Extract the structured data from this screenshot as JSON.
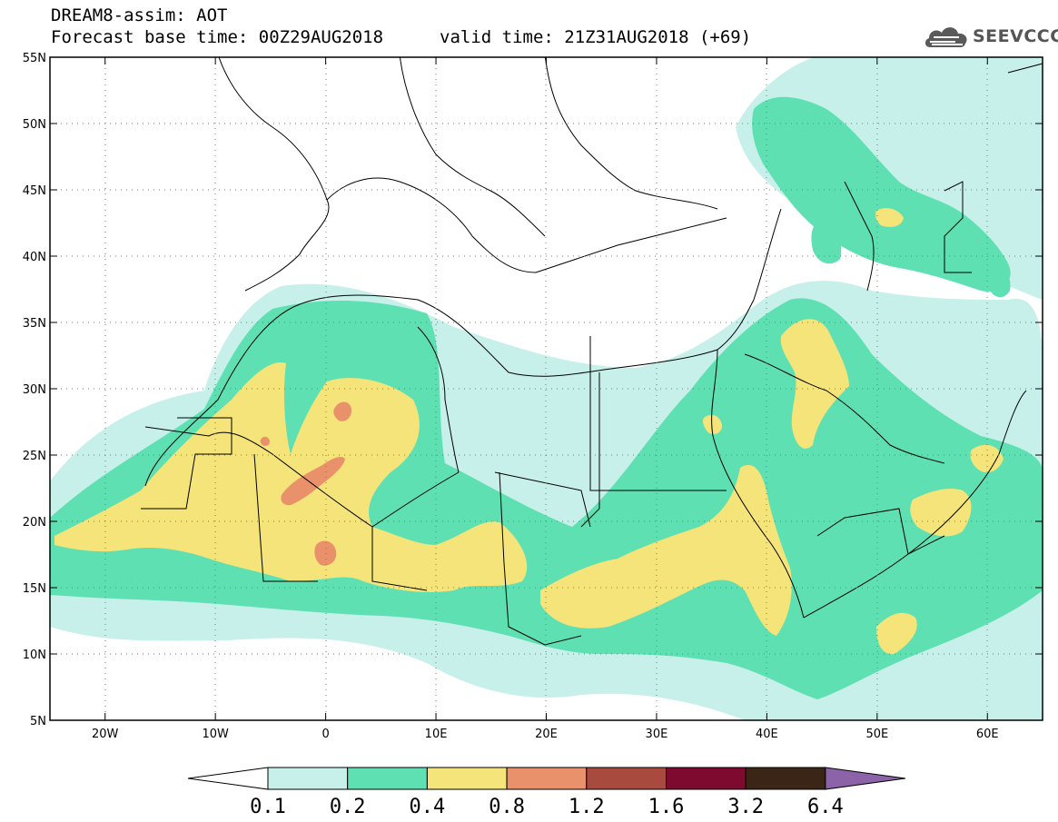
{
  "header": {
    "title_line1": "DREAM8-assim: AOT",
    "title_line2": "Forecast base time: 00Z29AUG2018",
    "valid_time": "valid time: 21Z31AUG2018 (+69)",
    "logo_text": "SEEVCCC"
  },
  "map": {
    "lon_range": [
      -25,
      65
    ],
    "lat_range": [
      5,
      55
    ],
    "lon_ticks": [
      {
        "lon": -20,
        "label": "20W"
      },
      {
        "lon": -10,
        "label": "10W"
      },
      {
        "lon": 0,
        "label": "0"
      },
      {
        "lon": 10,
        "label": "10E"
      },
      {
        "lon": 20,
        "label": "20E"
      },
      {
        "lon": 30,
        "label": "30E"
      },
      {
        "lon": 40,
        "label": "40E"
      },
      {
        "lon": 50,
        "label": "50E"
      },
      {
        "lon": 60,
        "label": "60E"
      }
    ],
    "lat_ticks": [
      {
        "lat": 55,
        "label": "55N"
      },
      {
        "lat": 50,
        "label": "50N"
      },
      {
        "lat": 45,
        "label": "45N"
      },
      {
        "lat": 40,
        "label": "40N"
      },
      {
        "lat": 35,
        "label": "35N"
      },
      {
        "lat": 30,
        "label": "30N"
      },
      {
        "lat": 25,
        "label": "25N"
      },
      {
        "lat": 20,
        "label": "20N"
      },
      {
        "lat": 15,
        "label": "15N"
      },
      {
        "lat": 10,
        "label": "10N"
      },
      {
        "lat": 5,
        "label": "5N"
      }
    ]
  },
  "colorbar": {
    "labels": [
      "0.1",
      "0.2",
      "0.4",
      "0.8",
      "1.2",
      "1.6",
      "3.2",
      "6.4"
    ],
    "colors": [
      "#c8f0ea",
      "#5ee0b2",
      "#f4e47a",
      "#e9916a",
      "#a94a3e",
      "#7e0b2f",
      "#3b2516"
    ],
    "under_color": "#ffffff",
    "over_color": "#8c63a8"
  },
  "colors": {
    "very_low": "#c8f0ea",
    "low": "#5ee0b2",
    "moderate": "#f4e47a",
    "high": "#e9916a"
  }
}
